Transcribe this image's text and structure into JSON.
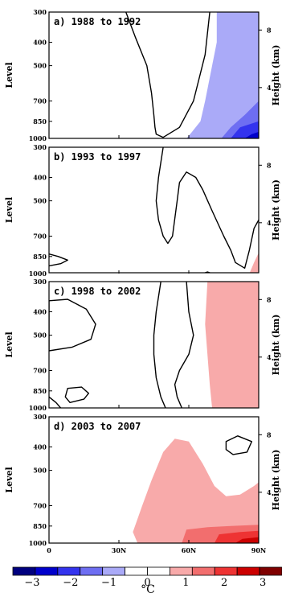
{
  "chart_data": {
    "type": "contour",
    "xaxis": {
      "ticks": [
        0,
        30,
        60,
        90
      ],
      "tick_labels": [
        "0",
        "30N",
        "60N",
        "90N"
      ],
      "range": [
        0,
        90
      ]
    },
    "yaxis_left": {
      "label": "Level",
      "ticks": [
        300,
        400,
        500,
        700,
        850,
        1000
      ],
      "tick_labels": [
        "300",
        "400",
        "500",
        "700",
        "850",
        "1000"
      ],
      "range": [
        1000,
        300
      ],
      "scale": "log"
    },
    "yaxis_right": {
      "label": "Height (km)",
      "ticks": [
        4,
        8
      ],
      "tick_labels": [
        "4",
        "8"
      ]
    },
    "colorbar": {
      "unit": "°C",
      "tick_labels": [
        "−3",
        "−2",
        "−1",
        "0",
        "1",
        "2",
        "3"
      ],
      "tick_values": [
        -3,
        -2,
        -1,
        0,
        1,
        2,
        3
      ],
      "colors": [
        "#00007f",
        "#0000cc",
        "#3333ee",
        "#6e6ef2",
        "#aaaaf8",
        "#ffffff",
        "#ffffff",
        "#f8aaaa",
        "#f26e6e",
        "#ee3333",
        "#cc0000",
        "#7f0000"
      ]
    },
    "panels": [
      {
        "title": "a) 1988 to 1992",
        "zero_contours": [
          {
            "closed": false,
            "points": [
              [
                33,
                300
              ],
              [
                37,
                380
              ],
              [
                42,
                500
              ],
              [
                44,
                650
              ],
              [
                45,
                800
              ],
              [
                45.5,
                900
              ],
              [
                46,
                960
              ],
              [
                49,
                990
              ],
              [
                56,
                900
              ],
              [
                62,
                700
              ],
              [
                67,
                450
              ],
              [
                69,
                300
              ]
            ]
          }
        ],
        "fills": [
          {
            "level": -0.5,
            "color": "#aaaaf8",
            "points": [
              [
                72,
                300
              ],
              [
                82,
                300
              ],
              [
                90,
                300
              ],
              [
                90,
                1000
              ],
              [
                59,
                1000
              ],
              [
                61,
                950
              ],
              [
                65,
                850
              ],
              [
                67,
                700
              ],
              [
                70,
                500
              ],
              [
                72,
                400
              ]
            ]
          },
          {
            "level": -1.0,
            "color": "#6e6ef2",
            "points": [
              [
                90,
                700
              ],
              [
                90,
                1000
              ],
              [
                74,
                1000
              ],
              [
                78,
                900
              ],
              [
                84,
                800
              ]
            ]
          },
          {
            "level": -1.5,
            "color": "#3333ee",
            "points": [
              [
                90,
                850
              ],
              [
                90,
                1000
              ],
              [
                78,
                1000
              ],
              [
                82,
                900
              ]
            ]
          },
          {
            "level": -2.0,
            "color": "#0000cc",
            "points": [
              [
                90,
                940
              ],
              [
                90,
                1000
              ],
              [
                84,
                1000
              ],
              [
                87,
                960
              ]
            ]
          }
        ]
      },
      {
        "title": "b) 1993 to 1997",
        "zero_contours": [
          {
            "closed": false,
            "points": [
              [
                49,
                300
              ],
              [
                47,
                400
              ],
              [
                46,
                500
              ],
              [
                47,
                600
              ],
              [
                49,
                700
              ],
              [
                51,
                750
              ],
              [
                53,
                700
              ],
              [
                55,
                500
              ],
              [
                56,
                420
              ],
              [
                59,
                380
              ],
              [
                63,
                400
              ],
              [
                66,
                450
              ],
              [
                70,
                550
              ],
              [
                75,
                700
              ],
              [
                78,
                800
              ],
              [
                80,
                900
              ],
              [
                84,
                950
              ],
              [
                86,
                800
              ],
              [
                88,
                650
              ],
              [
                90,
                600
              ]
            ]
          },
          {
            "closed": false,
            "points": [
              [
                0,
                830
              ],
              [
                4,
                850
              ],
              [
                8,
                880
              ],
              [
                5,
                910
              ],
              [
                0,
                930
              ]
            ]
          },
          {
            "closed": false,
            "points": [
              [
                66,
                1000
              ],
              [
                68,
                985
              ],
              [
                70,
                1000
              ]
            ]
          }
        ],
        "fills": [
          {
            "level": 0.5,
            "color": "#f8aaaa",
            "points": [
              [
                90,
                820
              ],
              [
                90,
                1000
              ],
              [
                86,
                1000
              ],
              [
                88,
                900
              ]
            ]
          }
        ]
      },
      {
        "title": "c) 1998 to 2002",
        "zero_contours": [
          {
            "closed": false,
            "points": [
              [
                48,
                300
              ],
              [
                46,
                400
              ],
              [
                45,
                500
              ],
              [
                45,
                600
              ],
              [
                46,
                750
              ],
              [
                48,
                900
              ],
              [
                50,
                1000
              ]
            ]
          },
          {
            "closed": false,
            "points": [
              [
                59,
                300
              ],
              [
                60,
                400
              ],
              [
                62,
                500
              ],
              [
                60,
                600
              ],
              [
                56,
                700
              ],
              [
                54,
                800
              ],
              [
                55,
                900
              ],
              [
                57,
                1000
              ]
            ]
          },
          {
            "closed": true,
            "points": [
              [
                0,
                360
              ],
              [
                8,
                355
              ],
              [
                16,
                390
              ],
              [
                20,
                450
              ],
              [
                18,
                520
              ],
              [
                10,
                560
              ],
              [
                0,
                580
              ]
            ]
          },
          {
            "closed": true,
            "points": [
              [
                8,
                830
              ],
              [
                14,
                820
              ],
              [
                17,
                870
              ],
              [
                15,
                920
              ],
              [
                9,
                950
              ],
              [
                7,
                900
              ]
            ]
          },
          {
            "closed": false,
            "points": [
              [
                0,
                900
              ],
              [
                3,
                950
              ],
              [
                5,
                1000
              ]
            ]
          }
        ],
        "fills": [
          {
            "level": 0.5,
            "color": "#f8aaaa",
            "points": [
              [
                68,
                300
              ],
              [
                90,
                300
              ],
              [
                90,
                1000
              ],
              [
                70,
                1000
              ],
              [
                69,
                800
              ],
              [
                68,
                600
              ],
              [
                67,
                450
              ]
            ]
          }
        ]
      },
      {
        "title": "d) 2003 to 2007",
        "zero_contours": [
          {
            "closed": true,
            "points": [
              [
                76,
                380
              ],
              [
                81,
                360
              ],
              [
                87,
                380
              ],
              [
                85,
                420
              ],
              [
                79,
                430
              ],
              [
                76,
                410
              ]
            ]
          }
        ],
        "fills": [
          {
            "level": 0.5,
            "color": "#f8aaaa",
            "points": [
              [
                36,
                900
              ],
              [
                40,
                700
              ],
              [
                44,
                550
              ],
              [
                49,
                420
              ],
              [
                54,
                370
              ],
              [
                60,
                380
              ],
              [
                66,
                470
              ],
              [
                71,
                580
              ],
              [
                76,
                640
              ],
              [
                82,
                630
              ],
              [
                88,
                580
              ],
              [
                90,
                560
              ],
              [
                90,
                1000
              ],
              [
                38,
                1000
              ]
            ]
          },
          {
            "level": 1.0,
            "color": "#f26e6e",
            "points": [
              [
                57,
                1000
              ],
              [
                59,
                880
              ],
              [
                68,
                860
              ],
              [
                78,
                850
              ],
              [
                90,
                840
              ],
              [
                90,
                1000
              ]
            ]
          },
          {
            "level": 1.5,
            "color": "#ee3333",
            "points": [
              [
                71,
                1000
              ],
              [
                73,
                920
              ],
              [
                82,
                900
              ],
              [
                90,
                890
              ],
              [
                90,
                1000
              ]
            ]
          },
          {
            "level": 2.0,
            "color": "#cc0000",
            "points": [
              [
                80,
                1000
              ],
              [
                83,
                960
              ],
              [
                90,
                945
              ],
              [
                90,
                1000
              ]
            ]
          }
        ]
      }
    ]
  }
}
